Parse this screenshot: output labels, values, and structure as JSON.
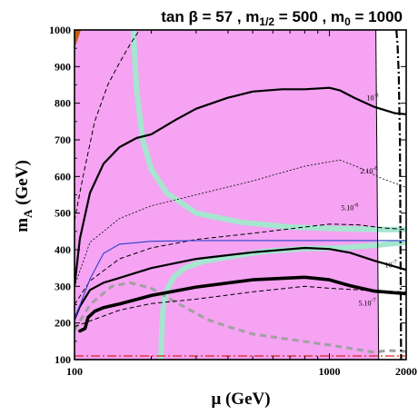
{
  "chart_data": {
    "type": "line",
    "title": "tan β = 57 ,  m1/2 = 500 ,  m0 = 1000",
    "title_parts": {
      "a": "tan β = 57 ,  m",
      "sub1": "1/2",
      "b": " = 500 ,  m",
      "sub2": "0",
      "c": " = 1000"
    },
    "xlabel": "μ (GeV)",
    "ylabel_parts": {
      "a": "m",
      "sub": "A",
      "b": " (GeV)"
    },
    "x_scale": "log",
    "xlim": [
      100,
      2000
    ],
    "ylim": [
      100,
      1000
    ],
    "x_ticks": [
      100,
      1000,
      2000
    ],
    "x_tick_labels": [
      "100",
      "1000",
      "2000"
    ],
    "y_ticks": [
      100,
      200,
      300,
      400,
      500,
      600,
      700,
      800,
      900,
      1000
    ],
    "y_tick_labels": [
      "100",
      "200",
      "300",
      "400",
      "500",
      "600",
      "700",
      "800",
      "900",
      "1000"
    ],
    "colors": {
      "excluded_region": "#f5a3f2",
      "corner_region": "#c06010",
      "light_band": "#a6e6cf",
      "blue_line": "#3040d0",
      "red_line": "#e02020",
      "gray_dashed": "#a0a0a0",
      "black": "#000000"
    },
    "regions": [
      {
        "name": "magenta-region",
        "color": "#f5a3f2",
        "x": [
          100,
          100,
          1520,
          1560,
          100
        ],
        "y": [
          100,
          1000,
          1000,
          100,
          100
        ]
      },
      {
        "name": "orange-corner-region",
        "color": "#c06010",
        "x": [
          100,
          100,
          106,
          100
        ],
        "y": [
          950,
          1000,
          1000,
          950
        ]
      }
    ],
    "series": [
      {
        "name": "1e-8",
        "label": "10",
        "label_sup": "-8",
        "label_at": [
          1400,
          808
        ],
        "style": "solid",
        "color": "#000000",
        "width": 2.2,
        "x": [
          100,
          105,
          115,
          130,
          150,
          175,
          200,
          250,
          300,
          400,
          500,
          650,
          800,
          1000,
          1100,
          1250,
          1500,
          1800,
          2000
        ],
        "y": [
          300,
          430,
          555,
          635,
          680,
          705,
          715,
          755,
          785,
          815,
          832,
          838,
          838,
          842,
          835,
          815,
          790,
          773,
          770
        ]
      },
      {
        "name": "1e-7",
        "label": "10",
        "label_sup": "-7",
        "label_at": [
          1650,
          352
        ],
        "style": "solid",
        "color": "#000000",
        "width": 2.2,
        "x": [
          100,
          105,
          115,
          130,
          150,
          200,
          300,
          500,
          800,
          1000,
          1200,
          1500,
          2000
        ],
        "y": [
          210,
          245,
          290,
          310,
          323,
          350,
          375,
          393,
          405,
          402,
          392,
          370,
          345
        ]
      },
      {
        "name": "5e-7",
        "label": "5.10",
        "label_sup": "-7",
        "label_at": [
          1300,
          248
        ],
        "style": "solid",
        "color": "#000000",
        "width": 3.6,
        "x": [
          105,
          110,
          113,
          120,
          130,
          150,
          200,
          300,
          500,
          800,
          1000,
          1200,
          1500,
          2000
        ],
        "y": [
          178,
          185,
          215,
          232,
          242,
          252,
          275,
          298,
          318,
          325,
          318,
          302,
          287,
          280
        ]
      },
      {
        "name": "2e-8",
        "label": "2.10",
        "label_sup": "-8",
        "label_at": [
          1320,
          608
        ],
        "style": "dotted",
        "color": "#000000",
        "width": 0.8,
        "x": [
          100,
          115,
          150,
          200,
          300,
          500,
          800,
          1100,
          1300,
          1600,
          2000
        ],
        "y": [
          300,
          420,
          485,
          520,
          550,
          588,
          628,
          645,
          625,
          595,
          570
        ]
      },
      {
        "name": "5e-8",
        "label": "5.10",
        "label_sup": "-8",
        "label_at": [
          1110,
          508
        ],
        "style": "dashed",
        "color": "#000000",
        "width": 1.0,
        "x": [
          100,
          115,
          150,
          200,
          300,
          500,
          800,
          1000,
          1300,
          1600,
          2000
        ],
        "y": [
          250,
          315,
          375,
          405,
          428,
          445,
          462,
          470,
          468,
          460,
          455
        ]
      },
      {
        "name": "dashed-upper",
        "style": "dashed",
        "color": "#000000",
        "width": 1.0,
        "x": [
          100,
          108,
          120,
          135,
          150,
          165,
          180
        ],
        "y": [
          480,
          600,
          750,
          850,
          910,
          960,
          1000
        ]
      },
      {
        "name": "dashed-lower",
        "style": "dashed",
        "color": "#000000",
        "width": 1.0,
        "x": [
          100,
          120,
          150,
          200,
          300,
          500,
          800,
          1000,
          1500,
          2000
        ],
        "y": [
          190,
          210,
          235,
          253,
          265,
          285,
          300,
          295,
          288,
          285
        ]
      },
      {
        "name": "light-band-upper",
        "style": "band",
        "color": "#a6e6cf",
        "width": 6,
        "x": [
          170,
          175,
          185,
          200,
          230,
          300,
          450,
          700,
          1000,
          1500,
          2000
        ],
        "y": [
          1000,
          840,
          700,
          620,
          555,
          500,
          475,
          462,
          458,
          455,
          455
        ]
      },
      {
        "name": "light-band-lower",
        "style": "band",
        "color": "#a6e6cf",
        "width": 6,
        "x": [
          218,
          220,
          222,
          225,
          232,
          245,
          270,
          320,
          400,
          550,
          800,
          1100,
          1500,
          2000
        ],
        "y": [
          100,
          180,
          230,
          265,
          295,
          325,
          350,
          368,
          380,
          395,
          403,
          405,
          412,
          420
        ]
      },
      {
        "name": "blue-line",
        "style": "solid",
        "color": "#3040d0",
        "width": 1.1,
        "x": [
          100,
          115,
          130,
          150,
          200,
          300,
          500,
          1000,
          2000
        ],
        "y": [
          210,
          320,
          390,
          415,
          423,
          425,
          425,
          425,
          425
        ]
      },
      {
        "name": "gray-dashed",
        "style": "gray-dashed",
        "color": "#a0a0a0",
        "width": 3,
        "x": [
          100,
          115,
          140,
          165,
          200,
          260,
          330,
          400,
          500,
          700,
          1000,
          1500,
          1700,
          1900,
          2000
        ],
        "y": [
          180,
          250,
          300,
          310,
          295,
          250,
          210,
          190,
          170,
          155,
          140,
          120,
          125,
          123,
          122
        ]
      },
      {
        "name": "red-dashdot",
        "style": "red-dashdot",
        "color": "#e02020",
        "width": 1.3,
        "x": [
          100,
          2000
        ],
        "y": [
          110,
          110
        ]
      },
      {
        "name": "vertical-solid",
        "style": "solid",
        "color": "#000000",
        "width": 1.0,
        "x": [
          1520,
          1560
        ],
        "y": [
          1000,
          100
        ]
      },
      {
        "name": "vertical-dashdot",
        "style": "dashdot",
        "color": "#000000",
        "width": 2.2,
        "x": [
          1830,
          1850,
          1870,
          1890,
          1910
        ],
        "y": [
          1000,
          960,
          880,
          700,
          100
        ]
      }
    ]
  }
}
